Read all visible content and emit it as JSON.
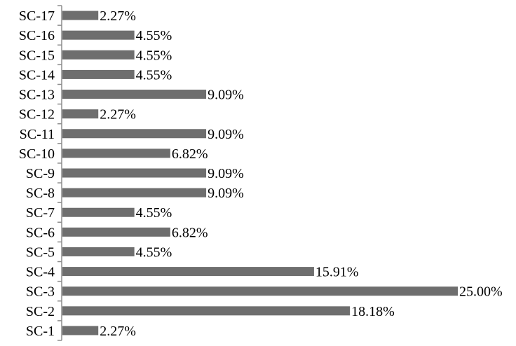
{
  "chart_data": {
    "type": "bar",
    "orientation": "horizontal",
    "categories": [
      "SC-1",
      "SC-2",
      "SC-3",
      "SC-4",
      "SC-5",
      "SC-6",
      "SC-7",
      "SC-8",
      "SC-9",
      "SC-10",
      "SC-11",
      "SC-12",
      "SC-13",
      "SC-14",
      "SC-15",
      "SC-16",
      "SC-17"
    ],
    "values": [
      2.27,
      18.18,
      25.0,
      15.91,
      4.55,
      6.82,
      4.55,
      9.09,
      9.09,
      6.82,
      9.09,
      2.27,
      9.09,
      4.55,
      4.55,
      4.55,
      2.27
    ],
    "value_labels": [
      "2.27%",
      "18.18%",
      "25.00%",
      "15.91%",
      "4.55%",
      "6.82%",
      "4.55%",
      "9.09%",
      "9.09%",
      "6.82%",
      "9.09%",
      "2.27%",
      "9.09%",
      "4.55%",
      "4.55%",
      "4.55%",
      "2.27%"
    ],
    "xlim": [
      0,
      25
    ],
    "grid": false,
    "legend": "none",
    "bar_color": "#6e6e6e"
  }
}
